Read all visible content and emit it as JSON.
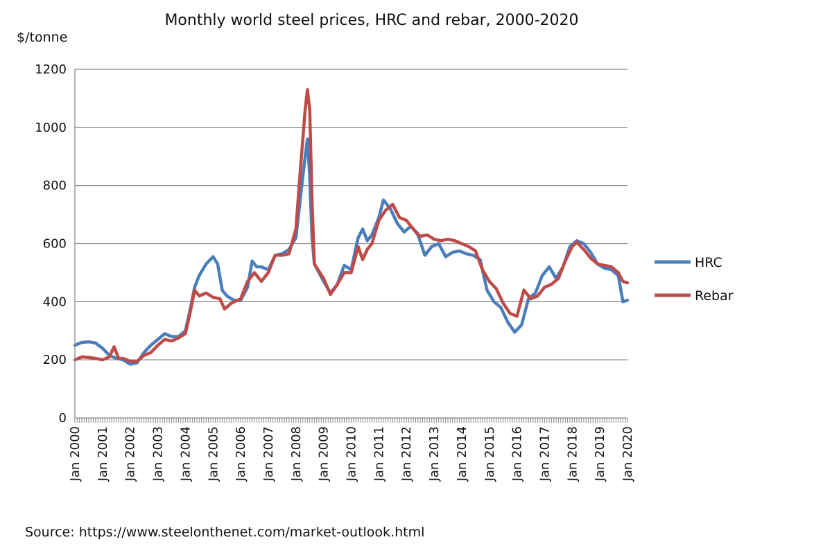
{
  "chart_data": {
    "type": "line",
    "title": "Monthly world steel prices, HRC and rebar, 2000-2020",
    "ylabel": "$/tonne",
    "xlabel": "",
    "ylim": [
      0,
      1200
    ],
    "yticks": [
      0,
      200,
      400,
      600,
      800,
      1000,
      1200
    ],
    "xlim": [
      "2000-01",
      "2020-01"
    ],
    "xtick_labels": [
      "Jan 2000",
      "Jan 2001",
      "Jan 2002",
      "Jan 2003",
      "Jan 2004",
      "Jan 2005",
      "Jan 2006",
      "Jan 2007",
      "Jan 2008",
      "Jan 2009",
      "Jan 2010",
      "Jan 2011",
      "Jan 2012",
      "Jan 2013",
      "Jan 2014",
      "Jan 2015",
      "Jan 2016",
      "Jan 2017",
      "Jan 2018",
      "Jan 2019",
      "Jan 2020"
    ],
    "grid": true,
    "legend_position": "right",
    "series": [
      {
        "name": "HRC",
        "color": "#4a7ebb",
        "points": [
          [
            "2000-01",
            250
          ],
          [
            "2000-04",
            260
          ],
          [
            "2000-07",
            262
          ],
          [
            "2000-10",
            258
          ],
          [
            "2001-01",
            240
          ],
          [
            "2001-04",
            215
          ],
          [
            "2001-07",
            205
          ],
          [
            "2001-10",
            200
          ],
          [
            "2002-01",
            185
          ],
          [
            "2002-04",
            190
          ],
          [
            "2002-07",
            225
          ],
          [
            "2002-10",
            250
          ],
          [
            "2003-01",
            270
          ],
          [
            "2003-04",
            290
          ],
          [
            "2003-07",
            280
          ],
          [
            "2003-10",
            280
          ],
          [
            "2004-01",
            300
          ],
          [
            "2004-03",
            370
          ],
          [
            "2004-05",
            450
          ],
          [
            "2004-07",
            490
          ],
          [
            "2004-10",
            530
          ],
          [
            "2005-01",
            555
          ],
          [
            "2005-03",
            530
          ],
          [
            "2005-05",
            440
          ],
          [
            "2005-07",
            420
          ],
          [
            "2005-10",
            405
          ],
          [
            "2006-01",
            405
          ],
          [
            "2006-04",
            450
          ],
          [
            "2006-06",
            540
          ],
          [
            "2006-08",
            520
          ],
          [
            "2006-10",
            520
          ],
          [
            "2007-01",
            510
          ],
          [
            "2007-04",
            560
          ],
          [
            "2007-07",
            565
          ],
          [
            "2007-10",
            580
          ],
          [
            "2008-01",
            620
          ],
          [
            "2008-03",
            760
          ],
          [
            "2008-05",
            900
          ],
          [
            "2008-06",
            960
          ],
          [
            "2008-07",
            830
          ],
          [
            "2008-08",
            620
          ],
          [
            "2008-09",
            530
          ],
          [
            "2009-01",
            470
          ],
          [
            "2009-04",
            430
          ],
          [
            "2009-07",
            460
          ],
          [
            "2009-10",
            525
          ],
          [
            "2010-01",
            510
          ],
          [
            "2010-04",
            620
          ],
          [
            "2010-06",
            650
          ],
          [
            "2010-08",
            610
          ],
          [
            "2010-10",
            630
          ],
          [
            "2011-01",
            690
          ],
          [
            "2011-03",
            750
          ],
          [
            "2011-06",
            720
          ],
          [
            "2011-09",
            670
          ],
          [
            "2011-12",
            640
          ],
          [
            "2012-03",
            660
          ],
          [
            "2012-06",
            630
          ],
          [
            "2012-09",
            560
          ],
          [
            "2012-12",
            590
          ],
          [
            "2013-03",
            600
          ],
          [
            "2013-06",
            555
          ],
          [
            "2013-09",
            570
          ],
          [
            "2013-12",
            575
          ],
          [
            "2014-03",
            565
          ],
          [
            "2014-06",
            560
          ],
          [
            "2014-09",
            545
          ],
          [
            "2014-12",
            440
          ],
          [
            "2015-03",
            400
          ],
          [
            "2015-06",
            380
          ],
          [
            "2015-09",
            330
          ],
          [
            "2015-12",
            295
          ],
          [
            "2016-03",
            320
          ],
          [
            "2016-06",
            410
          ],
          [
            "2016-09",
            430
          ],
          [
            "2016-12",
            490
          ],
          [
            "2017-03",
            520
          ],
          [
            "2017-06",
            480
          ],
          [
            "2017-09",
            520
          ],
          [
            "2017-12",
            590
          ],
          [
            "2018-03",
            610
          ],
          [
            "2018-06",
            600
          ],
          [
            "2018-09",
            570
          ],
          [
            "2018-12",
            530
          ],
          [
            "2019-03",
            515
          ],
          [
            "2019-06",
            510
          ],
          [
            "2019-09",
            490
          ],
          [
            "2019-11",
            400
          ],
          [
            "2020-01",
            405
          ]
        ]
      },
      {
        "name": "Rebar",
        "color": "#be4b48",
        "points": [
          [
            "2000-01",
            200
          ],
          [
            "2000-04",
            210
          ],
          [
            "2000-07",
            208
          ],
          [
            "2000-10",
            205
          ],
          [
            "2001-01",
            200
          ],
          [
            "2001-04",
            210
          ],
          [
            "2001-06",
            245
          ],
          [
            "2001-08",
            205
          ],
          [
            "2001-10",
            205
          ],
          [
            "2002-01",
            195
          ],
          [
            "2002-04",
            195
          ],
          [
            "2002-07",
            215
          ],
          [
            "2002-10",
            225
          ],
          [
            "2003-01",
            250
          ],
          [
            "2003-04",
            270
          ],
          [
            "2003-07",
            265
          ],
          [
            "2003-10",
            275
          ],
          [
            "2004-01",
            290
          ],
          [
            "2004-03",
            360
          ],
          [
            "2004-05",
            440
          ],
          [
            "2004-07",
            420
          ],
          [
            "2004-10",
            430
          ],
          [
            "2005-01",
            415
          ],
          [
            "2005-04",
            410
          ],
          [
            "2005-06",
            375
          ],
          [
            "2005-09",
            395
          ],
          [
            "2006-01",
            410
          ],
          [
            "2006-04",
            470
          ],
          [
            "2006-07",
            500
          ],
          [
            "2006-10",
            470
          ],
          [
            "2007-01",
            500
          ],
          [
            "2007-04",
            560
          ],
          [
            "2007-07",
            560
          ],
          [
            "2007-10",
            565
          ],
          [
            "2008-01",
            650
          ],
          [
            "2008-03",
            860
          ],
          [
            "2008-05",
            1060
          ],
          [
            "2008-06",
            1130
          ],
          [
            "2008-07",
            1060
          ],
          [
            "2008-08",
            750
          ],
          [
            "2008-09",
            530
          ],
          [
            "2009-01",
            480
          ],
          [
            "2009-04",
            425
          ],
          [
            "2009-07",
            460
          ],
          [
            "2009-10",
            500
          ],
          [
            "2010-01",
            500
          ],
          [
            "2010-04",
            590
          ],
          [
            "2010-06",
            545
          ],
          [
            "2010-08",
            580
          ],
          [
            "2010-10",
            600
          ],
          [
            "2011-01",
            680
          ],
          [
            "2011-04",
            715
          ],
          [
            "2011-07",
            735
          ],
          [
            "2011-10",
            690
          ],
          [
            "2012-01",
            680
          ],
          [
            "2012-04",
            650
          ],
          [
            "2012-07",
            625
          ],
          [
            "2012-10",
            630
          ],
          [
            "2013-01",
            615
          ],
          [
            "2013-04",
            610
          ],
          [
            "2013-07",
            615
          ],
          [
            "2013-10",
            610
          ],
          [
            "2014-01",
            600
          ],
          [
            "2014-04",
            590
          ],
          [
            "2014-07",
            575
          ],
          [
            "2014-10",
            510
          ],
          [
            "2015-01",
            470
          ],
          [
            "2015-04",
            445
          ],
          [
            "2015-07",
            395
          ],
          [
            "2015-10",
            360
          ],
          [
            "2016-01",
            350
          ],
          [
            "2016-04",
            440
          ],
          [
            "2016-07",
            410
          ],
          [
            "2016-10",
            420
          ],
          [
            "2017-01",
            450
          ],
          [
            "2017-04",
            460
          ],
          [
            "2017-07",
            480
          ],
          [
            "2017-10",
            540
          ],
          [
            "2018-01",
            590
          ],
          [
            "2018-03",
            605
          ],
          [
            "2018-06",
            580
          ],
          [
            "2018-09",
            550
          ],
          [
            "2018-12",
            530
          ],
          [
            "2019-03",
            525
          ],
          [
            "2019-06",
            520
          ],
          [
            "2019-09",
            500
          ],
          [
            "2019-11",
            470
          ],
          [
            "2020-01",
            465
          ]
        ]
      }
    ]
  },
  "source": "Source: https://www.steelonthenet.com/market-outlook.html"
}
